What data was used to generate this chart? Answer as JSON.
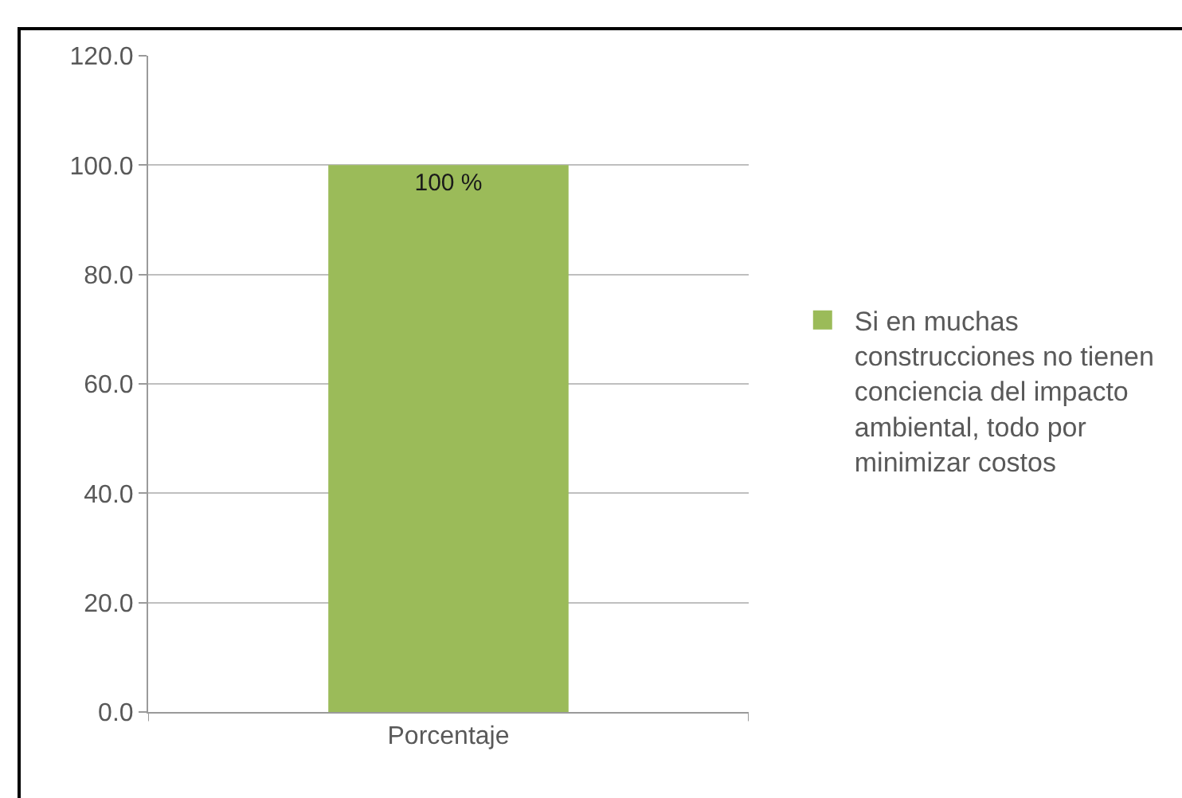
{
  "chart_data": {
    "type": "bar",
    "categories": [
      "Porcentaje"
    ],
    "series": [
      {
        "name": "Si en muchas construcciones no tienen conciencia del impacto ambiental, todo por minimizar costos",
        "color": "#9bbb59",
        "values": [
          100
        ],
        "value_labels": [
          "100 %"
        ]
      }
    ],
    "ylim": [
      0,
      120
    ],
    "yticks": [
      {
        "value": 0,
        "label": "0.0"
      },
      {
        "value": 20,
        "label": "20.0"
      },
      {
        "value": 40,
        "label": "40.0"
      },
      {
        "value": 60,
        "label": "60.0"
      },
      {
        "value": 80,
        "label": "80.0"
      },
      {
        "value": 100,
        "label": "100.0"
      },
      {
        "value": 120,
        "label": "120.0"
      }
    ],
    "grid": "y",
    "legend": "right"
  }
}
